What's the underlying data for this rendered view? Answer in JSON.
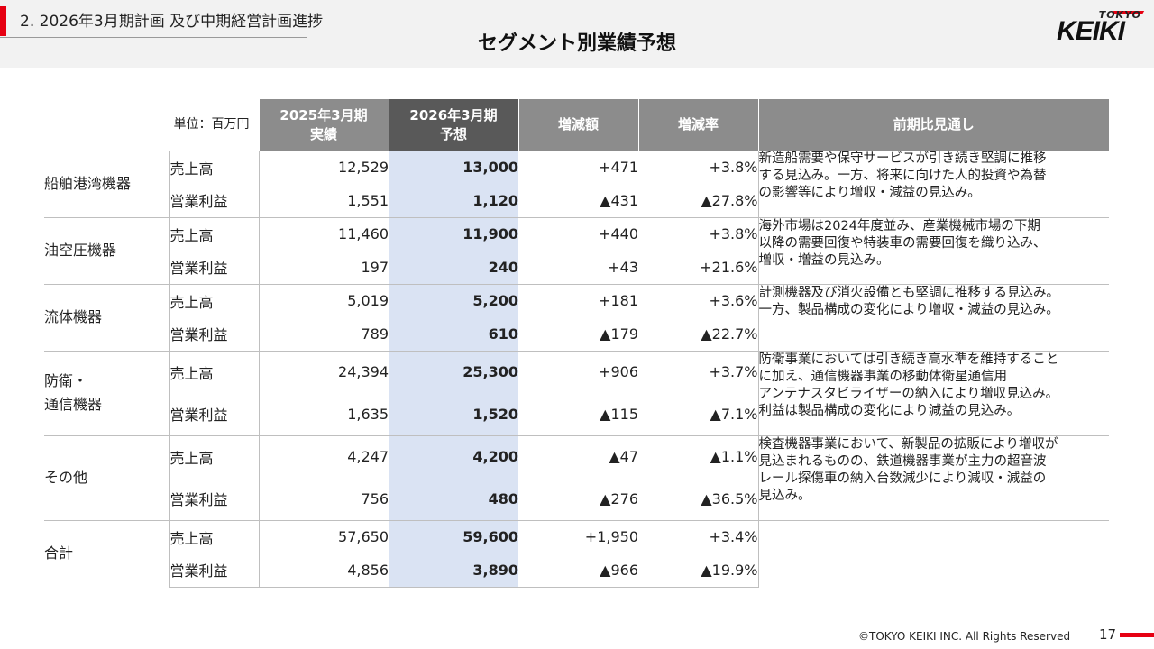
{
  "header": {
    "section": "2.  2026年3月期計画  及び中期経営計画進捗",
    "title": "セグメント別業績予想",
    "logo_top": "TOKYO",
    "logo_main": "KEIKI"
  },
  "table": {
    "unit": "単位：百万円",
    "columns": {
      "prev": [
        "2025年3月期",
        "実績"
      ],
      "forecast": [
        "2026年3月期",
        "予想"
      ],
      "change": "増減額",
      "rate": "増減率",
      "outlook": "前期比見通し"
    },
    "segments": [
      {
        "name": [
          "船舶港湾機器"
        ],
        "rows": [
          {
            "metric": "売上高",
            "prev": "12,529",
            "forecast": "13,000",
            "change": "+471",
            "rate": "+3.8%"
          },
          {
            "metric": "営業利益",
            "prev": "1,551",
            "forecast": "1,120",
            "change": "▲431",
            "rate": "▲27.8%"
          }
        ],
        "note": [
          "新造船需要や保守サービスが引き続き堅調に推移",
          "する見込み。一方、将来に向けた人的投資や為替",
          "の影響等により増収・減益の見込み。"
        ]
      },
      {
        "name": [
          "油空圧機器"
        ],
        "rows": [
          {
            "metric": "売上高",
            "prev": "11,460",
            "forecast": "11,900",
            "change": "+440",
            "rate": "+3.8%"
          },
          {
            "metric": "営業利益",
            "prev": "197",
            "forecast": "240",
            "change": "+43",
            "rate": "+21.6%"
          }
        ],
        "note": [
          "海外市場は2024年度並み、産業機械市場の下期",
          "以降の需要回復や特装車の需要回復を織り込み、",
          "増収・増益の見込み。"
        ]
      },
      {
        "name": [
          "流体機器"
        ],
        "rows": [
          {
            "metric": "売上高",
            "prev": "5,019",
            "forecast": "5,200",
            "change": "+181",
            "rate": "+3.6%"
          },
          {
            "metric": "営業利益",
            "prev": "789",
            "forecast": "610",
            "change": "▲179",
            "rate": "▲22.7%"
          }
        ],
        "note": [
          "計測機器及び消火設備とも堅調に推移する見込み。",
          "一方、製品構成の変化により増収・減益の見込み。"
        ]
      },
      {
        "name": [
          "防衛・",
          "通信機器"
        ],
        "rows": [
          {
            "metric": "売上高",
            "prev": "24,394",
            "forecast": "25,300",
            "change": "+906",
            "rate": "+3.7%"
          },
          {
            "metric": "営業利益",
            "prev": "1,635",
            "forecast": "1,520",
            "change": "▲115",
            "rate": "▲7.1%"
          }
        ],
        "note": [
          "防衛事業においては引き続き高水準を維持すること",
          "に加え、通信機器事業の移動体衛星通信用",
          "アンテナスタビライザーの納入により増収見込み。",
          "利益は製品構成の変化により減益の見込み。"
        ]
      },
      {
        "name": [
          "その他"
        ],
        "rows": [
          {
            "metric": "売上高",
            "prev": "4,247",
            "forecast": "4,200",
            "change": "▲47",
            "rate": "▲1.1%"
          },
          {
            "metric": "営業利益",
            "prev": "756",
            "forecast": "480",
            "change": "▲276",
            "rate": "▲36.5%"
          }
        ],
        "note": [
          "検査機器事業において、新製品の拡販により増収が",
          "見込まれるものの、鉄道機器事業が主力の超音波",
          "レール探傷車の納入台数減少により減収・減益の",
          "見込み。"
        ]
      },
      {
        "name": [
          "合計"
        ],
        "rows": [
          {
            "metric": "売上高",
            "prev": "57,650",
            "forecast": "59,600",
            "change": "+1,950",
            "rate": "+3.4%"
          },
          {
            "metric": "営業利益",
            "prev": "4,856",
            "forecast": "3,890",
            "change": "▲966",
            "rate": "▲19.9%"
          }
        ],
        "note": []
      }
    ]
  },
  "footer": {
    "copyright": "©TOKYO KEIKI INC. All Rights Reserved",
    "page": "17"
  },
  "colors": {
    "accent_red": "#e60012",
    "header_gray": "#8c8c8c",
    "header_dark": "#595959",
    "forecast_fill": "#dae3f3"
  }
}
